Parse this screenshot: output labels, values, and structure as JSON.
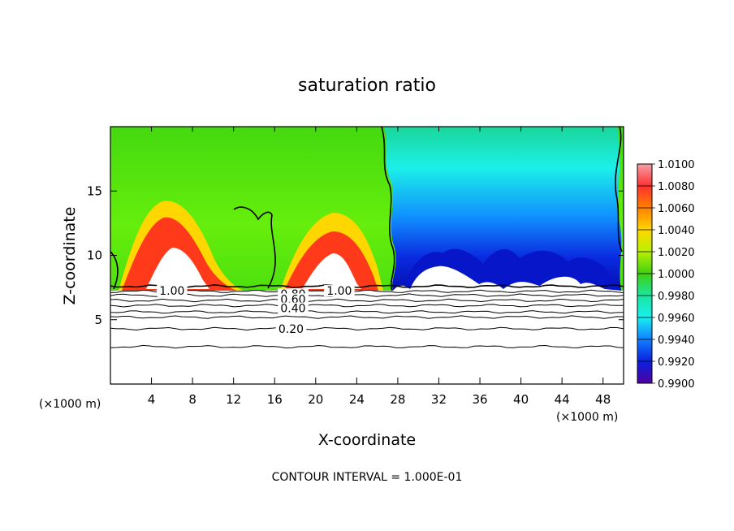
{
  "chart_data": {
    "type": "heatmap",
    "title": "saturation ratio",
    "xlabel": "X-coordinate",
    "ylabel": "Z-coordinate",
    "x_unit": "(×1000 m)",
    "y_unit": "(×1000 m)",
    "xlim": [
      0,
      50
    ],
    "ylim": [
      0,
      20
    ],
    "x_ticks": [
      "4",
      "8",
      "12",
      "16",
      "20",
      "24",
      "28",
      "32",
      "36",
      "40",
      "44",
      "48"
    ],
    "y_ticks": [
      "5",
      "10",
      "15"
    ],
    "colorbar": {
      "range": [
        0.99,
        1.01
      ],
      "labels": [
        "1.0100",
        "1.0080",
        "1.0060",
        "1.0040",
        "1.0020",
        "1.0000",
        "0.9980",
        "0.9960",
        "0.9940",
        "0.9920",
        "0.9900"
      ]
    },
    "contours": {
      "labels": [
        "1.00",
        "0.80",
        "0.60",
        "0.40",
        "0.20",
        "1.00"
      ],
      "levels_z": [
        7.6,
        7.2,
        6.9,
        6.5,
        6.1,
        5.6,
        5.2,
        4.3,
        2.9
      ]
    },
    "footer": "CONTOUR INTERVAL = 1.000E-01"
  }
}
